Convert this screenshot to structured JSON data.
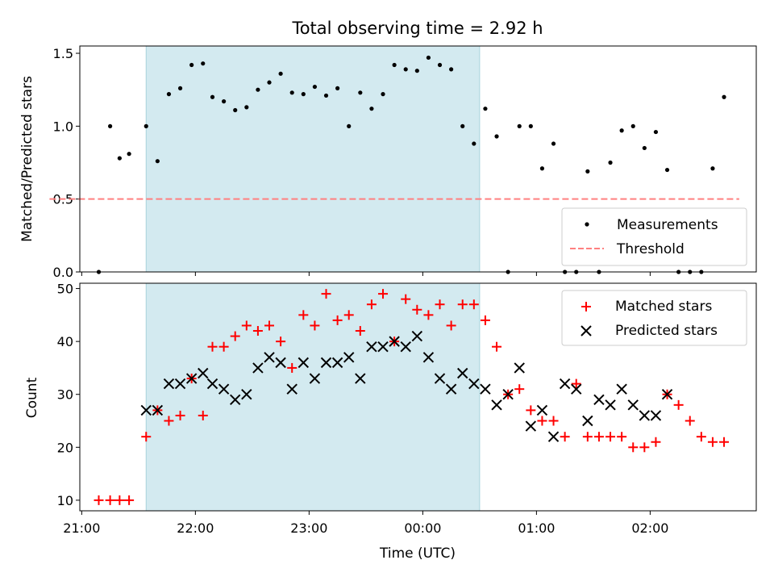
{
  "chart_data": [
    {
      "type": "scatter",
      "title": "Total observing time = 2.92 h",
      "ylabel": "Matched/Predicted stars",
      "xlabel": "",
      "ylim": [
        0,
        1.55
      ],
      "yticks": [
        "0.0",
        "0.5",
        "1.0",
        "1.5"
      ],
      "ytick_values": [
        0,
        0.5,
        1.0,
        1.5
      ],
      "shaded_region": {
        "start": "21:34",
        "end": "00:30",
        "color": "#d3eaf0"
      },
      "legend": {
        "position": "lower-right",
        "measurements": "Measurements",
        "threshold": "Threshold"
      },
      "threshold": {
        "name": "Threshold",
        "y": 0.5,
        "x_start": "20:43",
        "x_end": "02:47",
        "color": "#ff8080"
      },
      "series": [
        {
          "name": "Measurements",
          "color": "#000000",
          "marker": "dot",
          "x": [
            "21:09",
            "21:15",
            "21:20",
            "21:25",
            "21:34",
            "21:40",
            "21:46",
            "21:52",
            "21:58",
            "22:04",
            "22:09",
            "22:15",
            "22:21",
            "22:27",
            "22:33",
            "22:39",
            "22:45",
            "22:51",
            "22:57",
            "23:03",
            "23:09",
            "23:15",
            "23:21",
            "23:27",
            "23:33",
            "23:39",
            "23:45",
            "23:51",
            "23:57",
            "00:03",
            "00:09",
            "00:15",
            "00:21",
            "00:27",
            "00:33",
            "00:39",
            "00:45",
            "00:51",
            "00:57",
            "01:03",
            "01:09",
            "01:15",
            "01:21",
            "01:27",
            "01:33",
            "01:39",
            "01:45",
            "01:51",
            "01:57",
            "02:03",
            "02:09",
            "02:15",
            "02:21",
            "02:27",
            "02:33",
            "02:39"
          ],
          "y": [
            0,
            1.0,
            0.78,
            0.81,
            1.0,
            0.76,
            1.22,
            1.26,
            1.42,
            1.43,
            1.2,
            1.17,
            1.11,
            1.13,
            1.25,
            1.3,
            1.36,
            1.23,
            1.22,
            1.27,
            1.21,
            1.26,
            1.0,
            1.23,
            1.12,
            1.22,
            1.42,
            1.39,
            1.38,
            1.47,
            1.42,
            1.39,
            1.0,
            0.88,
            1.12,
            0.93,
            0,
            1.0,
            1.0,
            0.71,
            0.88,
            0,
            0,
            0.69,
            0,
            0.75,
            0.97,
            1.0,
            0.85,
            0.96,
            0.7,
            0,
            0,
            0,
            0.71,
            1.2
          ]
        }
      ]
    },
    {
      "type": "scatter",
      "title": "",
      "xlabel": "Time (UTC)",
      "ylabel": "Count",
      "ylim": [
        8,
        51
      ],
      "yticks": [
        "10",
        "20",
        "30",
        "40",
        "50"
      ],
      "ytick_values": [
        10,
        20,
        30,
        40,
        50
      ],
      "xticks": [
        "21:00",
        "22:00",
        "23:00",
        "00:00",
        "01:00",
        "02:00"
      ],
      "xtick_values": [
        "21:00",
        "22:00",
        "23:00",
        "00:00",
        "01:00",
        "02:00"
      ],
      "x_range": [
        "20:59",
        "02:56"
      ],
      "shaded_region": {
        "start": "21:34",
        "end": "00:30",
        "color": "#d3eaf0"
      },
      "legend": {
        "position": "top-right",
        "matched": "Matched stars",
        "predicted": "Predicted stars"
      },
      "series": [
        {
          "name": "Matched stars",
          "color": "#ff0000",
          "marker": "plus",
          "x": [
            "21:09",
            "21:15",
            "21:20",
            "21:25",
            "21:34",
            "21:40",
            "21:46",
            "21:52",
            "21:58",
            "22:04",
            "22:09",
            "22:15",
            "22:21",
            "22:27",
            "22:33",
            "22:39",
            "22:45",
            "22:51",
            "22:57",
            "23:03",
            "23:09",
            "23:15",
            "23:21",
            "23:27",
            "23:33",
            "23:39",
            "23:45",
            "23:51",
            "23:57",
            "00:03",
            "00:09",
            "00:15",
            "00:21",
            "00:27",
            "00:33",
            "00:39",
            "00:45",
            "00:51",
            "00:57",
            "01:03",
            "01:09",
            "01:15",
            "01:21",
            "01:27",
            "01:33",
            "01:39",
            "01:45",
            "01:51",
            "01:57",
            "02:03",
            "02:09",
            "02:15",
            "02:21",
            "02:27",
            "02:33",
            "02:39"
          ],
          "y": [
            10,
            10,
            10,
            10,
            22,
            27,
            25,
            26,
            33,
            26,
            39,
            39,
            41,
            43,
            42,
            43,
            40,
            35,
            45,
            43,
            49,
            44,
            45,
            42,
            47,
            49,
            40,
            48,
            46,
            45,
            47,
            43,
            47,
            47,
            44,
            39,
            30,
            31,
            27,
            25,
            25,
            22,
            32,
            22,
            22,
            22,
            22,
            20,
            20,
            21,
            30,
            28,
            25,
            22,
            21,
            21
          ]
        },
        {
          "name": "Predicted stars",
          "color": "#000000",
          "marker": "x",
          "x": [
            "21:34",
            "21:40",
            "21:46",
            "21:52",
            "21:58",
            "22:04",
            "22:09",
            "22:15",
            "22:21",
            "22:27",
            "22:33",
            "22:39",
            "22:45",
            "22:51",
            "22:57",
            "23:03",
            "23:09",
            "23:15",
            "23:21",
            "23:27",
            "23:33",
            "23:39",
            "23:45",
            "23:51",
            "23:57",
            "00:03",
            "00:09",
            "00:15",
            "00:21",
            "00:27",
            "00:33",
            "00:39",
            "00:45",
            "00:51",
            "00:57",
            "01:03",
            "01:09",
            "01:15",
            "01:21",
            "01:27",
            "01:33",
            "01:39",
            "01:45",
            "01:51",
            "01:57",
            "02:03",
            "02:09"
          ],
          "y": [
            27,
            27,
            32,
            32,
            33,
            34,
            32,
            31,
            29,
            30,
            35,
            37,
            36,
            31,
            36,
            33,
            36,
            36,
            37,
            33,
            39,
            39,
            40,
            39,
            41,
            37,
            33,
            31,
            34,
            32,
            31,
            28,
            30,
            35,
            24,
            27,
            22,
            32,
            31,
            25,
            29,
            28,
            31,
            28,
            26,
            26,
            30
          ]
        }
      ]
    }
  ]
}
